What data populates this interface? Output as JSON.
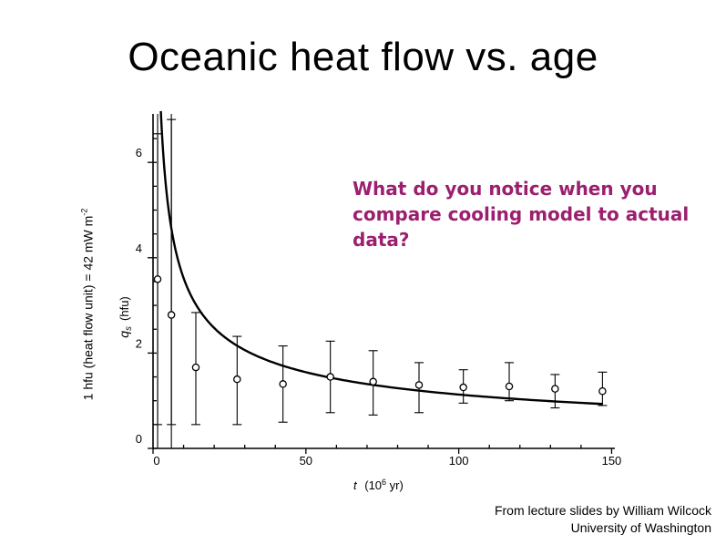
{
  "slide": {
    "title": "Oceanic heat flow vs. age",
    "question": "What do you notice when you compare cooling model to actual data?",
    "credit_line1": "From lecture slides by William Wilcock",
    "credit_line2": "University of Washington",
    "question_color": "#9b1f6e"
  },
  "outer_ylabel": {
    "text": "1 hfu (heat flow unit) = 42 mW m",
    "superscript": "-2"
  },
  "chart_data": {
    "type": "scatter",
    "xlabel_var": "t",
    "xlabel_units": "(10",
    "xlabel_exp": "6",
    "xlabel_tail": " yr)",
    "ylabel_var": "q",
    "ylabel_sub": "s",
    "ylabel_units": "(hfu)",
    "xlim": [
      0,
      150
    ],
    "ylim": [
      0,
      7
    ],
    "x_ticks": [
      0,
      50,
      100,
      150
    ],
    "y_ticks": [
      0,
      2,
      4,
      6
    ],
    "x_tick_labels": [
      "0",
      "50",
      "100",
      "150"
    ],
    "y_tick_labels": [
      "0",
      "2",
      "4",
      "6"
    ],
    "grid": false,
    "legend": "none",
    "series": [
      {
        "kind": "observations",
        "x": [
          1.5,
          6,
          14,
          27.5,
          42.5,
          58,
          72,
          87,
          101.5,
          116.5,
          131.5,
          147
        ],
        "y": [
          3.55,
          2.8,
          1.7,
          1.45,
          1.35,
          1.5,
          1.4,
          1.33,
          1.28,
          1.3,
          1.25,
          1.2
        ],
        "err_low": [
          0.5,
          0.5,
          0.5,
          0.5,
          0.55,
          0.75,
          0.7,
          0.75,
          0.95,
          1.0,
          0.85,
          0.9
        ],
        "err_high": [
          6.6,
          6.9,
          2.85,
          2.35,
          2.15,
          2.25,
          2.05,
          1.8,
          1.65,
          1.8,
          1.55,
          1.6
        ]
      },
      {
        "kind": "cooling-model",
        "coefficient": 11.3,
        "x_start": 2.55,
        "x_end": 147
      }
    ],
    "vertical_lines_x": [
      1.5,
      6
    ]
  }
}
